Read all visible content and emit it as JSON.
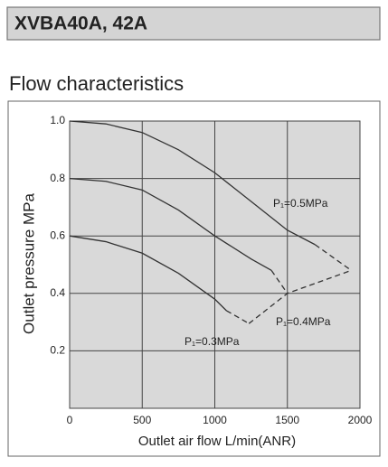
{
  "header": {
    "title": "XVBA40A, 42A"
  },
  "section_title": "Flow characteristics",
  "chart_data": {
    "type": "line",
    "x_label": "Outlet air flow L/min(ANR)",
    "y_label": "Outlet pressure MPa",
    "xlim": [
      0,
      2000
    ],
    "ylim": [
      0,
      1.0
    ],
    "xticks": [
      0,
      500,
      1000,
      1500,
      2000
    ],
    "yticks": [
      0.2,
      0.4,
      0.6,
      0.8,
      {
        "value": 1.0,
        "label": "1.0"
      }
    ],
    "grid": true,
    "series": [
      {
        "name": "P₁=0.5MPa",
        "color": "#333333",
        "dashed_from": 7,
        "x": [
          0,
          250,
          500,
          750,
          1000,
          1250,
          1500,
          1690,
          1940
        ],
        "values": [
          1.0,
          0.99,
          0.96,
          0.9,
          0.82,
          0.72,
          0.62,
          0.57,
          0.48
        ]
      },
      {
        "name": "P₁=0.4MPa",
        "color": "#333333",
        "dashed_from": 6,
        "x": [
          0,
          250,
          500,
          750,
          1000,
          1250,
          1390,
          1500
        ],
        "values": [
          0.8,
          0.79,
          0.76,
          0.69,
          0.6,
          0.52,
          0.48,
          0.4
        ]
      },
      {
        "name": "P₁=0.3MPa",
        "color": "#333333",
        "dashed_from": 5,
        "x": [
          0,
          250,
          500,
          750,
          1000,
          1080,
          1235
        ],
        "values": [
          0.6,
          0.58,
          0.54,
          0.47,
          0.38,
          0.34,
          0.295
        ]
      }
    ],
    "limit_line": {
      "color": "#333333",
      "x": [
        1235,
        1500,
        1940
      ],
      "values": [
        0.295,
        0.4,
        0.48
      ]
    }
  }
}
